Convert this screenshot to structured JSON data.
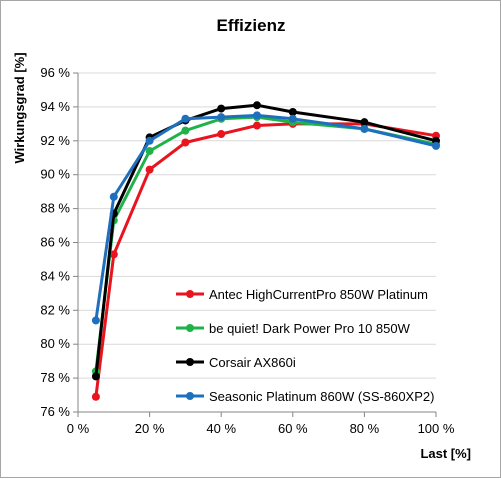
{
  "chart_data": {
    "type": "line",
    "title": "Effizienz",
    "xlabel": "Last [%]",
    "ylabel": "Wirkungsgrad [%]",
    "xlim": [
      0,
      100
    ],
    "ylim": [
      76,
      96
    ],
    "x_ticks": [
      "0 %",
      "20 %",
      "40 %",
      "60 %",
      "80 %",
      "100 %"
    ],
    "y_ticks": [
      "76 %",
      "78 %",
      "80 %",
      "82 %",
      "84 %",
      "86 %",
      "88 %",
      "90 %",
      "92 %",
      "94 %",
      "96 %"
    ],
    "grid": "horizontal",
    "legend_position": "inside-bottom-right",
    "series": [
      {
        "name": "Antec HighCurrentPro 850W Platinum",
        "color": "#e8141e",
        "x": [
          5,
          10,
          20,
          30,
          40,
          50,
          60,
          80,
          100
        ],
        "y": [
          76.9,
          85.3,
          90.3,
          91.9,
          92.4,
          92.9,
          93.0,
          93.0,
          92.3
        ]
      },
      {
        "name": "be quiet! Dark Power Pro 10 850W",
        "color": "#1fb24a",
        "x": [
          5,
          10,
          20,
          30,
          40,
          50,
          60,
          80,
          100
        ],
        "y": [
          78.4,
          87.3,
          91.4,
          92.6,
          93.3,
          93.4,
          93.1,
          92.7,
          91.8
        ]
      },
      {
        "name": "Corsair AX860i",
        "color": "#000000",
        "x": [
          5,
          10,
          20,
          30,
          40,
          50,
          60,
          80,
          100
        ],
        "y": [
          78.1,
          87.7,
          92.2,
          93.2,
          93.9,
          94.1,
          93.7,
          93.1,
          92.0
        ]
      },
      {
        "name": "Seasonic Platinum 860W (SS-860XP2)",
        "color": "#1f6fbf",
        "x": [
          5,
          10,
          20,
          30,
          40,
          50,
          60,
          80,
          100
        ],
        "y": [
          81.4,
          88.7,
          92.0,
          93.3,
          93.4,
          93.5,
          93.3,
          92.7,
          91.7
        ]
      }
    ]
  }
}
